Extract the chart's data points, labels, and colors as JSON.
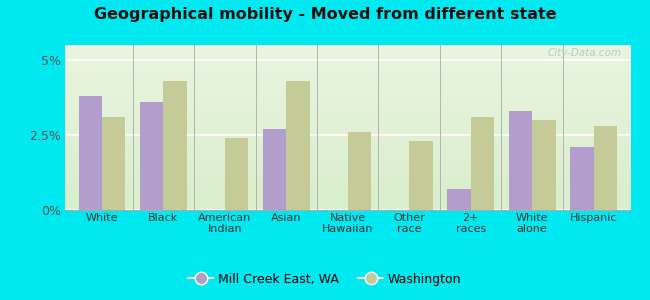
{
  "title": "Geographical mobility - Moved from different state",
  "categories": [
    "White",
    "Black",
    "American\nIndian",
    "Asian",
    "Native\nHawaiian",
    "Other\nrace",
    "2+\nraces",
    "White\nalone",
    "Hispanic"
  ],
  "mill_creek": [
    3.8,
    3.6,
    0.0,
    2.7,
    0.0,
    0.0,
    0.7,
    3.3,
    2.1
  ],
  "washington": [
    3.1,
    4.3,
    2.4,
    4.3,
    2.6,
    2.3,
    3.1,
    3.0,
    2.8
  ],
  "mill_creek_color": "#b39dcc",
  "washington_color": "#c5cb96",
  "outer_bg": "#00e8f0",
  "ylim": [
    0,
    5.5
  ],
  "yticks": [
    0,
    2.5,
    5
  ],
  "yticklabels": [
    "0%",
    "2.5%",
    "5%"
  ],
  "legend_label1": "Mill Creek East, WA",
  "legend_label2": "Washington",
  "watermark": "City-Data.com",
  "bar_width": 0.38
}
